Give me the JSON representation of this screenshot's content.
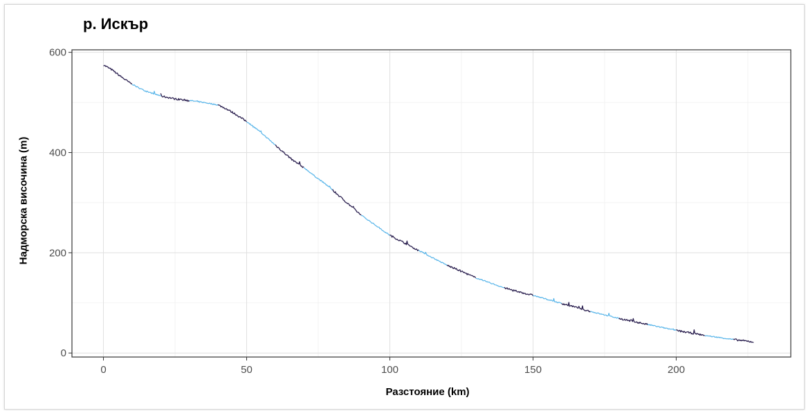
{
  "chart_data": {
    "type": "line",
    "title": "р. Искър",
    "xlabel": "Разстояние (km)",
    "ylabel": "Надморска височина (m)",
    "xlim": [
      -11,
      240
    ],
    "ylim": [
      -8,
      605
    ],
    "xticks": [
      0,
      50,
      100,
      150,
      200
    ],
    "yticks": [
      0,
      200,
      400,
      600
    ],
    "grid": true,
    "legend": "none",
    "colors": {
      "dark": "#2a1f4f",
      "light": "#56b4e9"
    },
    "series": [
      {
        "x": [
          0,
          3,
          6,
          9,
          12,
          15,
          20,
          25,
          30,
          35,
          40,
          43,
          46,
          50,
          54,
          58,
          62,
          66,
          70,
          74,
          78,
          82,
          86,
          90,
          95,
          100,
          105,
          110,
          115,
          120,
          125,
          130,
          135,
          140,
          145,
          150,
          155,
          160,
          165,
          170,
          175,
          180,
          185,
          190,
          195,
          200,
          205,
          210,
          215,
          220,
          227
        ],
        "y": [
          575,
          565,
          552,
          540,
          530,
          522,
          513,
          507,
          504,
          500,
          495,
          487,
          477,
          462,
          445,
          425,
          405,
          385,
          370,
          352,
          335,
          315,
          295,
          275,
          255,
          235,
          220,
          205,
          190,
          175,
          163,
          150,
          140,
          130,
          122,
          115,
          107,
          99,
          91,
          83,
          76,
          69,
          63,
          57,
          51,
          45,
          40,
          35,
          31,
          27,
          22
        ],
        "segments": [
          {
            "from": 0,
            "to": 10,
            "color": "dark"
          },
          {
            "from": 10,
            "to": 20,
            "color": "light"
          },
          {
            "from": 20,
            "to": 30,
            "color": "dark"
          },
          {
            "from": 30,
            "to": 40,
            "color": "light"
          },
          {
            "from": 40,
            "to": 50,
            "color": "dark"
          },
          {
            "from": 50,
            "to": 60,
            "color": "light"
          },
          {
            "from": 60,
            "to": 70,
            "color": "dark"
          },
          {
            "from": 70,
            "to": 80,
            "color": "light"
          },
          {
            "from": 80,
            "to": 90,
            "color": "dark"
          },
          {
            "from": 90,
            "to": 100,
            "color": "light"
          },
          {
            "from": 100,
            "to": 110,
            "color": "dark"
          },
          {
            "from": 110,
            "to": 120,
            "color": "light"
          },
          {
            "from": 120,
            "to": 130,
            "color": "dark"
          },
          {
            "from": 130,
            "to": 140,
            "color": "light"
          },
          {
            "from": 140,
            "to": 150,
            "color": "dark"
          },
          {
            "from": 150,
            "to": 160,
            "color": "light"
          },
          {
            "from": 160,
            "to": 170,
            "color": "dark"
          },
          {
            "from": 170,
            "to": 180,
            "color": "light"
          },
          {
            "from": 180,
            "to": 190,
            "color": "dark"
          },
          {
            "from": 190,
            "to": 200,
            "color": "light"
          },
          {
            "from": 200,
            "to": 210,
            "color": "dark"
          },
          {
            "from": 210,
            "to": 220,
            "color": "light"
          },
          {
            "from": 220,
            "to": 227,
            "color": "dark"
          }
        ]
      }
    ]
  }
}
